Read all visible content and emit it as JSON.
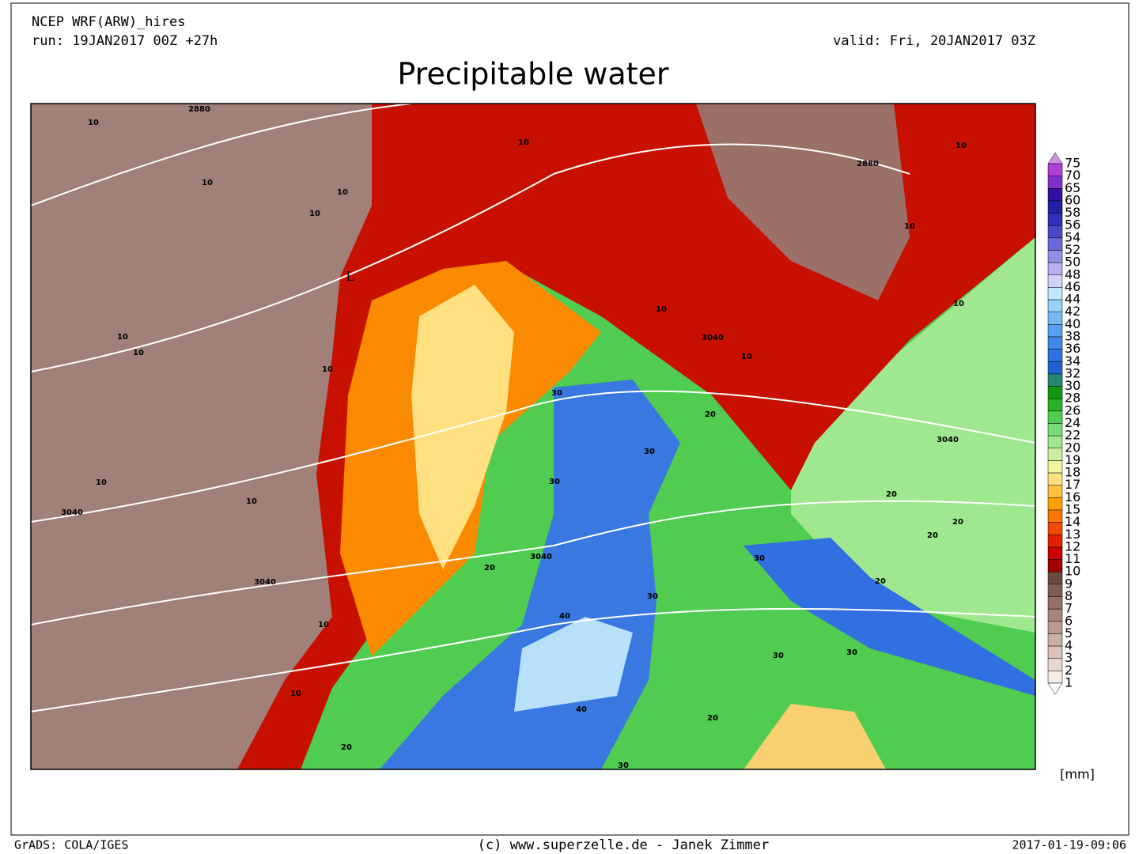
{
  "header": {
    "model": "NCEP WRF(ARW)_hires",
    "run": "run: 19JAN2017 00Z +27h",
    "valid": "valid: Fri, 20JAN2017 03Z",
    "title": "Precipitable water"
  },
  "colorbar": {
    "unit": "[mm]",
    "levels": [
      75,
      70,
      65,
      60,
      58,
      56,
      54,
      52,
      50,
      48,
      46,
      44,
      42,
      40,
      38,
      36,
      34,
      32,
      30,
      28,
      26,
      24,
      22,
      20,
      19,
      18,
      17,
      16,
      15,
      14,
      13,
      12,
      11,
      10,
      9,
      8,
      7,
      6,
      5,
      4,
      3,
      2,
      1
    ],
    "colors": [
      "#d090e8",
      "#b040d8",
      "#8030c8",
      "#3010a0",
      "#2020a8",
      "#3030b8",
      "#4848c8",
      "#6868d8",
      "#9090e8",
      "#b8b0f0",
      "#d0d0f8",
      "#c0e8fc",
      "#98d0f8",
      "#78b8f5",
      "#58a0f0",
      "#4088e8",
      "#3070e0",
      "#2060d0",
      "#208870",
      "#109810",
      "#28b428",
      "#50cc50",
      "#78dc78",
      "#a0e890",
      "#c8f0a0",
      "#f0f5a0",
      "#ffe080",
      "#ffc040",
      "#ffa000",
      "#fa7800",
      "#f04a00",
      "#e02000",
      "#c80000",
      "#a00000",
      "#6c4a42",
      "#805d54",
      "#957166",
      "#a8857a",
      "#bc9a8f",
      "#cdaea3",
      "#dcc2b8",
      "#ead8d0",
      "#f5ede8"
    ]
  },
  "map": {
    "contour_labels": [
      "2880",
      "10",
      "10",
      "10",
      "10",
      "L",
      "10",
      "10",
      "10",
      "3040",
      "10",
      "10",
      "3040",
      "10",
      "10",
      "30",
      "30",
      "30",
      "3040",
      "20",
      "20",
      "40",
      "40",
      "30",
      "30",
      "20",
      "20",
      "30",
      "30",
      "3040",
      "20",
      "20",
      "20",
      "30",
      "10",
      "10",
      "3040",
      "2880",
      "10",
      "10",
      "10",
      "10",
      "20"
    ]
  },
  "footer": {
    "left": "GrADS: COLA/IGES",
    "center": "(c) www.superzelle.de - Janek Zimmer",
    "right": "2017-01-19-09:06"
  }
}
